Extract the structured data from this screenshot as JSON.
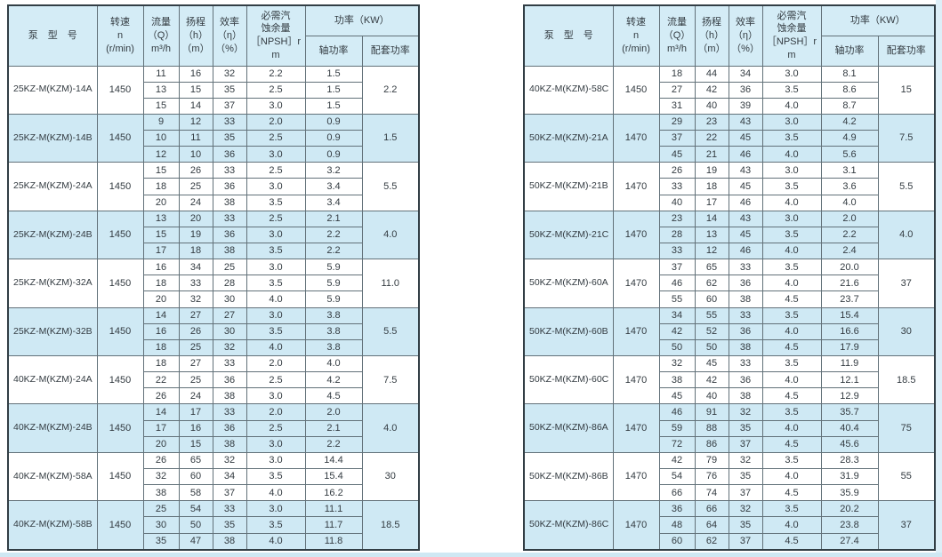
{
  "colors": {
    "row_alt": "#cfe9f4",
    "header_bg": "#d4ecf6",
    "border_outer": "#323e45",
    "border_inner": "#627179",
    "edge_strip": "#cfe8f3",
    "text": "#333b41"
  },
  "columns": {
    "model": "泵　型　号",
    "speed": [
      "转速",
      "n",
      "(r/min)"
    ],
    "flow": [
      "流量",
      "（Q）",
      "m³/h"
    ],
    "head": [
      "扬程",
      "（h）",
      "（m）"
    ],
    "efficiency": [
      "效率",
      "（η）",
      "（%）"
    ],
    "npsh": [
      "必需汽",
      "蚀余量",
      "［NPSH］r",
      "m"
    ],
    "power_group": "功率（KW）",
    "shaft": "轴功率",
    "matched": "配套功率"
  },
  "tables": [
    {
      "groups": [
        {
          "model": "25KZ-M(KZM)-14A",
          "speed": "1450",
          "rows": [
            [
              "11",
              "16",
              "32",
              "2.2",
              "1.5"
            ],
            [
              "13",
              "15",
              "35",
              "2.5",
              "1.5"
            ],
            [
              "15",
              "14",
              "37",
              "3.0",
              "1.5"
            ]
          ],
          "matched": "2.2"
        },
        {
          "model": "25KZ-M(KZM)-14B",
          "speed": "1450",
          "rows": [
            [
              "9",
              "12",
              "33",
              "2.0",
              "0.9"
            ],
            [
              "10",
              "11",
              "35",
              "2.5",
              "0.9"
            ],
            [
              "12",
              "10",
              "36",
              "3.0",
              "0.9"
            ]
          ],
          "matched": "1.5"
        },
        {
          "model": "25KZ-M(KZM)-24A",
          "speed": "1450",
          "rows": [
            [
              "15",
              "26",
              "33",
              "2.5",
              "3.2"
            ],
            [
              "18",
              "25",
              "36",
              "3.0",
              "3.4"
            ],
            [
              "20",
              "24",
              "38",
              "3.5",
              "3.4"
            ]
          ],
          "matched": "5.5"
        },
        {
          "model": "25KZ-M(KZM)-24B",
          "speed": "1450",
          "rows": [
            [
              "13",
              "20",
              "33",
              "2.5",
              "2.1"
            ],
            [
              "15",
              "19",
              "36",
              "3.0",
              "2.2"
            ],
            [
              "17",
              "18",
              "38",
              "3.5",
              "2.2"
            ]
          ],
          "matched": "4.0"
        },
        {
          "model": "25KZ-M(KZM)-32A",
          "speed": "1450",
          "rows": [
            [
              "16",
              "34",
              "25",
              "3.0",
              "5.9"
            ],
            [
              "18",
              "33",
              "28",
              "3.5",
              "5.9"
            ],
            [
              "20",
              "32",
              "30",
              "4.0",
              "5.9"
            ]
          ],
          "matched": "11.0"
        },
        {
          "model": "25KZ-M(KZM)-32B",
          "speed": "1450",
          "rows": [
            [
              "14",
              "27",
              "27",
              "3.0",
              "3.8"
            ],
            [
              "16",
              "26",
              "30",
              "3.5",
              "3.8"
            ],
            [
              "18",
              "25",
              "32",
              "4.0",
              "3.8"
            ]
          ],
          "matched": "5.5"
        },
        {
          "model": "40KZ-M(KZM)-24A",
          "speed": "1450",
          "rows": [
            [
              "18",
              "27",
              "33",
              "2.0",
              "4.0"
            ],
            [
              "22",
              "25",
              "36",
              "2.5",
              "4.2"
            ],
            [
              "26",
              "24",
              "38",
              "3.0",
              "4.5"
            ]
          ],
          "matched": "7.5"
        },
        {
          "model": "40KZ-M(KZM)-24B",
          "speed": "1450",
          "rows": [
            [
              "14",
              "17",
              "33",
              "2.0",
              "2.0"
            ],
            [
              "17",
              "16",
              "36",
              "2.5",
              "2.1"
            ],
            [
              "20",
              "15",
              "38",
              "3.0",
              "2.2"
            ]
          ],
          "matched": "4.0"
        },
        {
          "model": "40KZ-M(KZM)-58A",
          "speed": "1450",
          "rows": [
            [
              "26",
              "65",
              "32",
              "3.0",
              "14.4"
            ],
            [
              "32",
              "60",
              "34",
              "3.5",
              "15.4"
            ],
            [
              "38",
              "58",
              "37",
              "4.0",
              "16.2"
            ]
          ],
          "matched": "30"
        },
        {
          "model": "40KZ-M(KZM)-58B",
          "speed": "1450",
          "rows": [
            [
              "25",
              "54",
              "33",
              "3.0",
              "11.1"
            ],
            [
              "30",
              "50",
              "35",
              "3.5",
              "11.7"
            ],
            [
              "35",
              "47",
              "38",
              "4.0",
              "11.8"
            ]
          ],
          "matched": "18.5"
        }
      ]
    },
    {
      "groups": [
        {
          "model": "40KZ-M(KZM)-58C",
          "speed": "1450",
          "rows": [
            [
              "18",
              "44",
              "34",
              "3.0",
              "8.1"
            ],
            [
              "27",
              "42",
              "36",
              "3.5",
              "8.6"
            ],
            [
              "31",
              "40",
              "39",
              "4.0",
              "8.7"
            ]
          ],
          "matched": "15"
        },
        {
          "model": "50KZ-M(KZM)-21A",
          "speed": "1470",
          "rows": [
            [
              "29",
              "23",
              "43",
              "3.0",
              "4.2"
            ],
            [
              "37",
              "22",
              "45",
              "3.5",
              "4.9"
            ],
            [
              "45",
              "21",
              "46",
              "4.0",
              "5.6"
            ]
          ],
          "matched": "7.5"
        },
        {
          "model": "50KZ-M(KZM)-21B",
          "speed": "1470",
          "rows": [
            [
              "26",
              "19",
              "43",
              "3.0",
              "3.1"
            ],
            [
              "33",
              "18",
              "45",
              "3.5",
              "3.6"
            ],
            [
              "40",
              "17",
              "46",
              "4.0",
              "4.0"
            ]
          ],
          "matched": "5.5"
        },
        {
          "model": "50KZ-M(KZM)-21C",
          "speed": "1470",
          "rows": [
            [
              "23",
              "14",
              "43",
              "3.0",
              "2.0"
            ],
            [
              "28",
              "13",
              "45",
              "3.5",
              "2.2"
            ],
            [
              "33",
              "12",
              "46",
              "4.0",
              "2.4"
            ]
          ],
          "matched": "4.0"
        },
        {
          "model": "50KZ-M(KZM)-60A",
          "speed": "1470",
          "rows": [
            [
              "37",
              "65",
              "33",
              "3.5",
              "20.0"
            ],
            [
              "46",
              "62",
              "36",
              "4.0",
              "21.6"
            ],
            [
              "55",
              "60",
              "38",
              "4.5",
              "23.7"
            ]
          ],
          "matched": "37"
        },
        {
          "model": "50KZ-M(KZM)-60B",
          "speed": "1470",
          "rows": [
            [
              "34",
              "55",
              "33",
              "3.5",
              "15.4"
            ],
            [
              "42",
              "52",
              "36",
              "4.0",
              "16.6"
            ],
            [
              "50",
              "50",
              "38",
              "4.5",
              "17.9"
            ]
          ],
          "matched": "30"
        },
        {
          "model": "50KZ-M(KZM)-60C",
          "speed": "1470",
          "rows": [
            [
              "32",
              "45",
              "33",
              "3.5",
              "11.9"
            ],
            [
              "38",
              "42",
              "36",
              "4.0",
              "12.1"
            ],
            [
              "45",
              "40",
              "38",
              "4.5",
              "12.9"
            ]
          ],
          "matched": "18.5"
        },
        {
          "model": "50KZ-M(KZM)-86A",
          "speed": "1470",
          "rows": [
            [
              "46",
              "91",
              "32",
              "3.5",
              "35.7"
            ],
            [
              "59",
              "88",
              "35",
              "4.0",
              "40.4"
            ],
            [
              "72",
              "86",
              "37",
              "4.5",
              "45.6"
            ]
          ],
          "matched": "75"
        },
        {
          "model": "50KZ-M(KZM)-86B",
          "speed": "1470",
          "rows": [
            [
              "42",
              "79",
              "32",
              "3.5",
              "28.3"
            ],
            [
              "54",
              "76",
              "35",
              "4.0",
              "31.9"
            ],
            [
              "66",
              "74",
              "37",
              "4.5",
              "35.9"
            ]
          ],
          "matched": "55"
        },
        {
          "model": "50KZ-M(KZM)-86C",
          "speed": "1470",
          "rows": [
            [
              "36",
              "66",
              "32",
              "3.5",
              "20.2"
            ],
            [
              "48",
              "64",
              "35",
              "4.0",
              "23.8"
            ],
            [
              "60",
              "62",
              "37",
              "4.5",
              "27.4"
            ]
          ],
          "matched": "37"
        }
      ]
    }
  ]
}
